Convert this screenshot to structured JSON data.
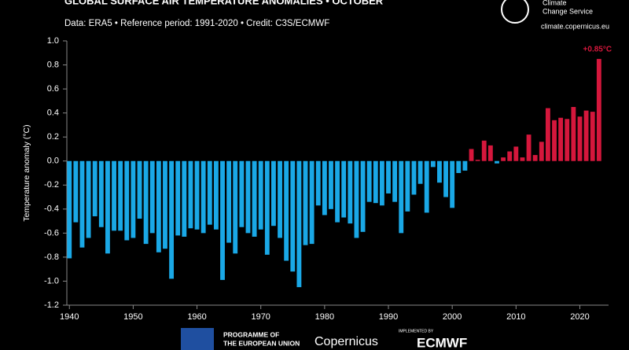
{
  "chart_data": {
    "type": "bar",
    "title": "GLOBAL SURFACE AIR TEMPERATURE ANOMALIES • OCTOBER",
    "subtitle": "Data: ERA5 • Reference period: 1991-2020 • Credit: C3S/ECMWF",
    "y_label": "Temperature anomaly (°C)",
    "annotation": "+0.85°C",
    "x": [
      1940,
      1941,
      1942,
      1943,
      1944,
      1945,
      1946,
      1947,
      1948,
      1949,
      1950,
      1951,
      1952,
      1953,
      1954,
      1955,
      1956,
      1957,
      1958,
      1959,
      1960,
      1961,
      1962,
      1963,
      1964,
      1965,
      1966,
      1967,
      1968,
      1969,
      1970,
      1971,
      1972,
      1973,
      1974,
      1975,
      1976,
      1977,
      1978,
      1979,
      1980,
      1981,
      1982,
      1983,
      1984,
      1985,
      1986,
      1987,
      1988,
      1989,
      1990,
      1991,
      1992,
      1993,
      1994,
      1995,
      1996,
      1997,
      1998,
      1999,
      2000,
      2001,
      2002,
      2003,
      2004,
      2005,
      2006,
      2007,
      2008,
      2009,
      2010,
      2011,
      2012,
      2013,
      2014,
      2015,
      2016,
      2017,
      2018,
      2019,
      2020,
      2021,
      2022,
      2023
    ],
    "values": [
      -0.81,
      -0.51,
      -0.72,
      -0.64,
      -0.46,
      -0.55,
      -0.77,
      -0.58,
      -0.58,
      -0.66,
      -0.64,
      -0.48,
      -0.69,
      -0.6,
      -0.76,
      -0.73,
      -0.98,
      -0.62,
      -0.63,
      -0.56,
      -0.57,
      -0.6,
      -0.53,
      -0.57,
      -0.99,
      -0.68,
      -0.77,
      -0.55,
      -0.6,
      -0.63,
      -0.57,
      -0.78,
      -0.54,
      -0.64,
      -0.83,
      -0.92,
      -1.05,
      -0.7,
      -0.69,
      -0.37,
      -0.45,
      -0.4,
      -0.51,
      -0.47,
      -0.52,
      -0.64,
      -0.59,
      -0.34,
      -0.35,
      -0.37,
      -0.27,
      -0.34,
      -0.6,
      -0.42,
      -0.28,
      -0.19,
      -0.43,
      -0.05,
      -0.18,
      -0.3,
      -0.39,
      -0.1,
      -0.08,
      0.1,
      0.01,
      0.17,
      0.13,
      -0.02,
      0.03,
      0.08,
      0.12,
      0.03,
      0.22,
      0.05,
      0.16,
      0.44,
      0.34,
      0.36,
      0.35,
      0.45,
      0.37,
      0.42,
      0.41,
      0.85
    ],
    "colors": {
      "positive": "#d5173c",
      "negative": "#1aa8e6"
    },
    "xlim": [
      1939.6,
      2024.5
    ],
    "xticks": [
      1940,
      1950,
      1960,
      1970,
      1980,
      1990,
      2000,
      2010,
      2020
    ],
    "ylim": [
      -1.2,
      1.0
    ],
    "yticks": [
      {
        "value": 1.0,
        "label": "1.0"
      },
      0.8,
      0.6,
      0.4,
      0.2,
      {
        "value": 0,
        "label": "0.0"
      },
      -0.2,
      -0.4,
      -0.6,
      -0.8,
      {
        "value": -1.0,
        "label": "-1.0"
      },
      -1.2
    ]
  },
  "branding": {
    "service": [
      "Climate",
      "Change Service"
    ],
    "url": "climate.copernicus.eu",
    "programme": [
      "PROGRAMME OF",
      "THE EUROPEAN UNION"
    ],
    "copernicus": "Copernicus",
    "implemented": "IMPLEMENTED BY",
    "ecmwf": "ECMWF"
  }
}
